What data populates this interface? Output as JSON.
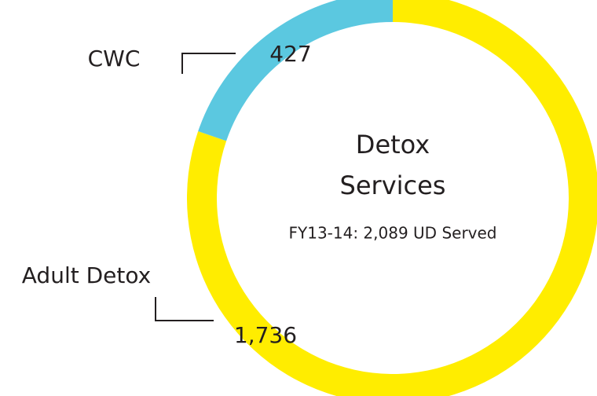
{
  "chart_data": {
    "type": "donut",
    "title_lines": [
      "Detox",
      "Services"
    ],
    "subtitle": "FY13-14: 2,089 UD Served",
    "categories": [
      "Adult Detox",
      "CWC"
    ],
    "values": [
      1736,
      427
    ],
    "value_labels": [
      "1,736",
      "427"
    ],
    "colors": [
      "#ffed00",
      "#5bc8e0"
    ]
  }
}
